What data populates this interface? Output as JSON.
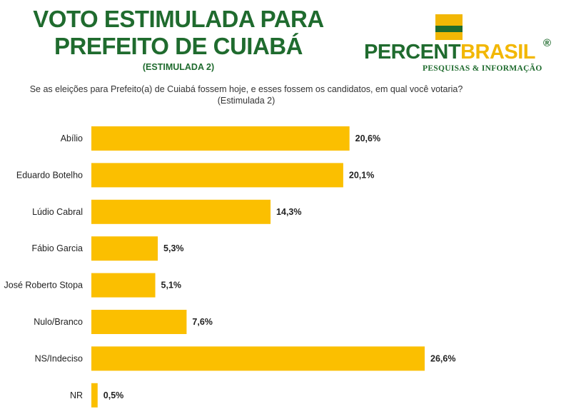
{
  "header": {
    "title": "VOTO ESTIMULADA PARA PREFEITO DE CUIABÁ",
    "subtitle": "(ESTIMULADA 2)",
    "question": "Se as eleições para Prefeito(a) de Cuiabá fossem hoje, e esses fossem os candidatos, em qual você votaria? (Estimulada 2)"
  },
  "logo": {
    "word_part1": "PERCENT",
    "word_part2": "BRASIL",
    "registered": "®",
    "tagline": "PESQUISAS & INFORMAÇÃO"
  },
  "colors": {
    "bar": "#fbbf00",
    "brand_green": "#1f6b2e",
    "brand_yellow": "#f2b705"
  },
  "chart_data": {
    "type": "bar",
    "orientation": "horizontal",
    "categories": [
      "Abílio",
      "Eduardo Botelho",
      "Lúdio Cabral",
      "Fábio Garcia",
      "José Roberto Stopa",
      "Nulo/Branco",
      "NS/Indeciso",
      "NR"
    ],
    "values": [
      20.6,
      20.1,
      14.3,
      5.3,
      5.1,
      7.6,
      26.6,
      0.5
    ],
    "value_labels": [
      "20,6%",
      "20,1%",
      "14,3%",
      "5,3%",
      "5,1%",
      "7,6%",
      "26,6%",
      "0,5%"
    ],
    "xlim": [
      0,
      26.6
    ],
    "grid": false,
    "legend": "none"
  }
}
